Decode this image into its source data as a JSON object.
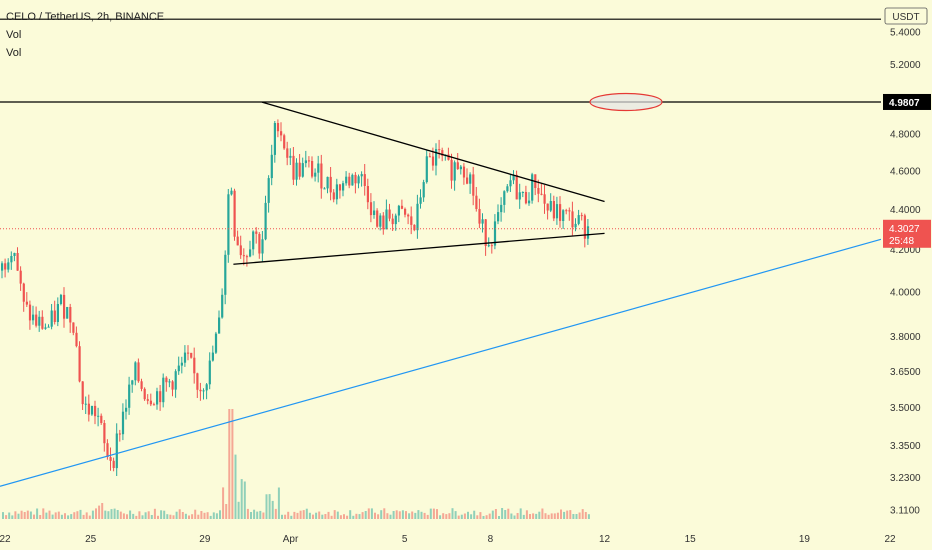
{
  "legend": {
    "symbol_line": "CELO / TetherUS, 2h, BINANCE",
    "vol1": "Vol",
    "vol2": "Vol"
  },
  "currency_label": "USDT",
  "colors": {
    "background": "#fbfbd9",
    "up": "#26a69a",
    "down": "#ef5350",
    "trendline": "#2196f3",
    "resistance": "#000000",
    "current_price": "#ef5350"
  },
  "chart_data": {
    "type": "candlestick",
    "title": "CELO / TetherUS, 2h, BINANCE",
    "y_axis": {
      "ticks": [
        "5.4000",
        "5.2000",
        "4.8000",
        "4.6000",
        "4.4000",
        "4.2000",
        "4.0000",
        "3.8000",
        "3.6500",
        "3.5000",
        "3.3500",
        "3.2300",
        "3.1100"
      ],
      "log_scale": true
    },
    "x_axis": {
      "ticks": [
        "22",
        "25",
        "29",
        "Apr",
        "5",
        "8",
        "12",
        "15",
        "19",
        "22"
      ]
    },
    "price_labels": {
      "resistance": "4.9807",
      "current_price": "4.3027",
      "countdown": "25:48"
    },
    "horizontal_lines": [
      {
        "name": "top-line",
        "price": 5.48
      },
      {
        "name": "resistance",
        "price": 4.9807
      }
    ],
    "symmetrical_triangle": {
      "upper": [
        {
          "date": "Mar 31",
          "price": 4.98
        },
        {
          "date": "Apr 12",
          "price": 4.44
        }
      ],
      "lower": [
        {
          "date": "Mar 30",
          "price": 4.13
        },
        {
          "date": "Apr 12",
          "price": 4.28
        }
      ]
    },
    "ascending_trendline": [
      {
        "date": "Mar 21",
        "price": 3.22
      },
      {
        "date": "Apr 23",
        "price": 4.3
      }
    ],
    "grid": false
  }
}
